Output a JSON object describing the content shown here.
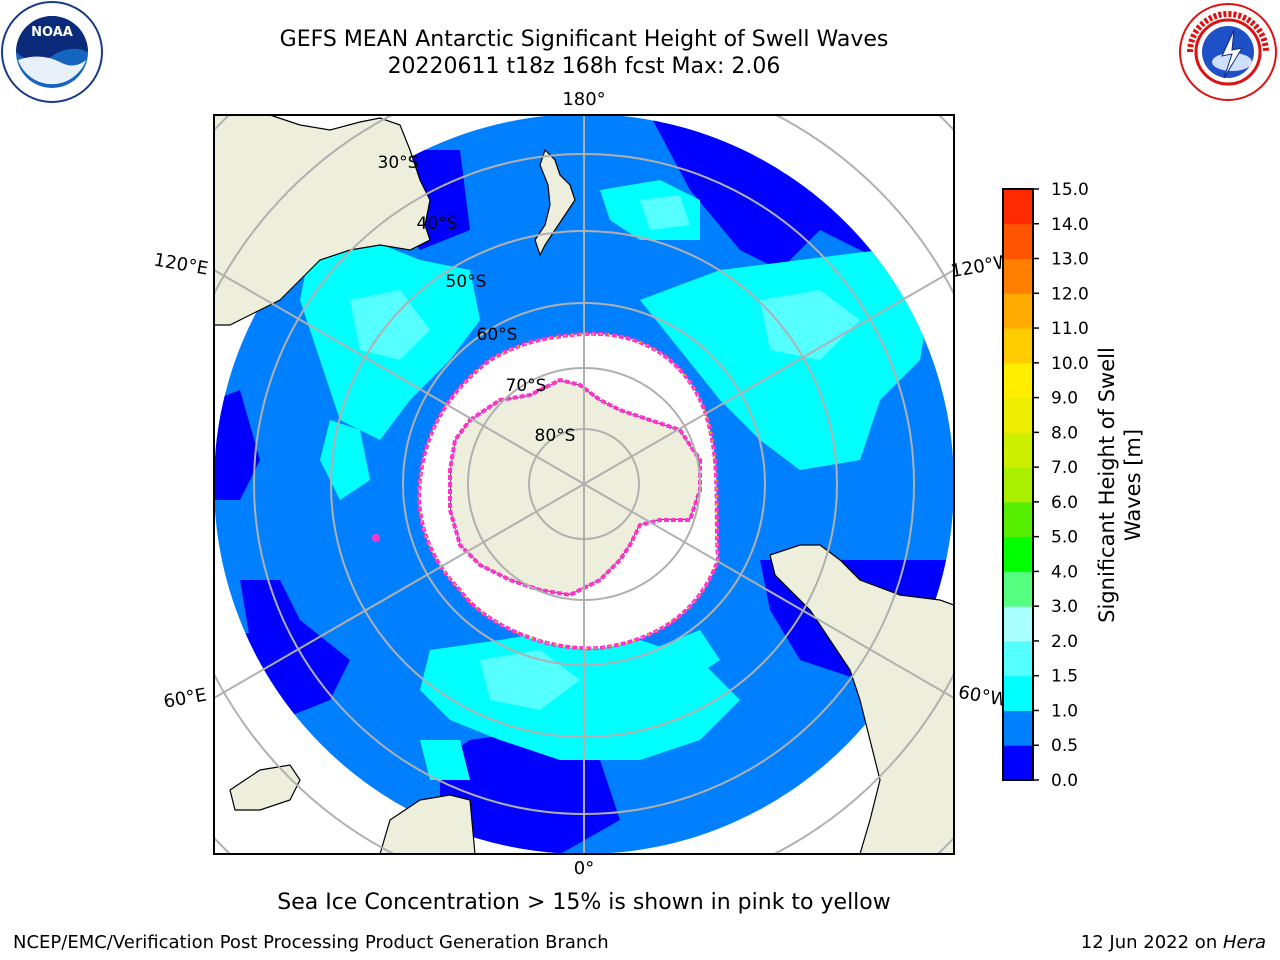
{
  "header": {
    "title_line1": "GEFS MEAN Antarctic Significant Height of Swell Waves",
    "title_line2": "20220611 t18z 168h fcst   Max: 2.06"
  },
  "logos": {
    "left_icon": "noaa-logo-icon",
    "left_text": "NOAA",
    "left_ring_text": "NATIONAL OCEANIC AND ATMOSPHERIC ADMINISTRATION · U.S. DEPARTMENT OF COMMERCE",
    "right_icon": "nws-logo-icon",
    "right_ring_text": "NATIONAL WEATHER SERVICE"
  },
  "map": {
    "projection": "south-polar-stereographic",
    "longitude_labels": {
      "top": "180°",
      "bottom": "0°",
      "upper_left": "120°E",
      "upper_right": "120°W",
      "lower_left": "60°E",
      "lower_right": "60°W"
    },
    "latitude_labels": [
      "30°S",
      "40°S",
      "50°S",
      "60°S",
      "70°S",
      "80°S"
    ],
    "colors": {
      "ocean_low": "#0000ff",
      "ocean_mid": "#0080ff",
      "ocean_swell": "#00ffff",
      "ocean_swell_high": "#55ffff",
      "land": "#eeeedd",
      "sea_ice": "#ffffff",
      "ice_edge": "#ff33cc",
      "grid": "#b0b0b0"
    }
  },
  "colorbar": {
    "label_line1": "Significant Height of Swell",
    "label_line2": "Waves [m]",
    "ticks": [
      "0.0",
      "0.5",
      "1.0",
      "1.5",
      "2.0",
      "3.0",
      "4.0",
      "5.0",
      "6.0",
      "7.0",
      "8.0",
      "9.0",
      "10.0",
      "11.0",
      "12.0",
      "13.0",
      "14.0",
      "15.0"
    ],
    "colors": [
      "#0000ff",
      "#0080ff",
      "#00ffff",
      "#55ffff",
      "#aaffff",
      "#55ff80",
      "#00ff00",
      "#55ee00",
      "#aaee00",
      "#ccf000",
      "#eeee00",
      "#ffee00",
      "#ffcc00",
      "#ffaa00",
      "#ff8000",
      "#ff5500",
      "#ff2a00",
      "#ff0000"
    ]
  },
  "caption": "Sea Ice Concentration > 15% is shown in pink to yellow",
  "footer": {
    "left": "NCEP/EMC/Verification Post Processing Product Generation Branch",
    "right_date": "12 Jun 2022 on ",
    "right_host": "Hera"
  }
}
